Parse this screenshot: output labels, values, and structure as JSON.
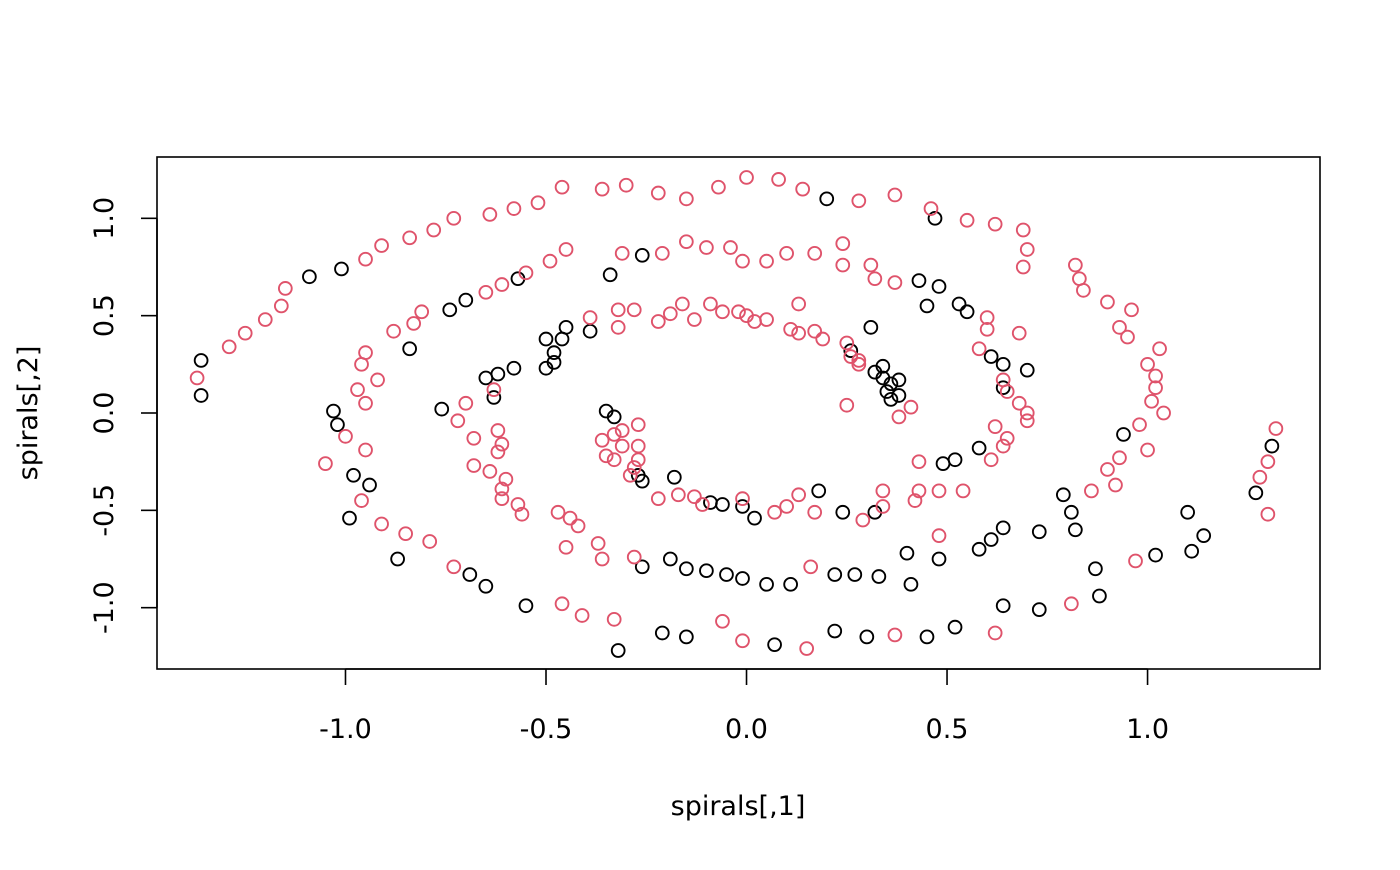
{
  "chart_data": {
    "type": "scatter",
    "title": "",
    "xlabel": "spirals[,1]",
    "ylabel": "spirals[,2]",
    "xlim": [
      -1.47,
      1.43
    ],
    "ylim": [
      -1.315,
      1.315
    ],
    "x_ticks": [
      -1.0,
      -0.5,
      0.0,
      0.5,
      1.0
    ],
    "x_tick_labels": [
      "-1.0",
      "-0.5",
      "0.0",
      "0.5",
      "1.0"
    ],
    "y_ticks": [
      -1.0,
      -0.5,
      0.0,
      0.5,
      1.0
    ],
    "y_tick_labels": [
      "-1.0",
      "-0.5",
      "0.0",
      "0.5",
      "1.0"
    ],
    "grid": false,
    "legend": "none",
    "series": [
      {
        "color": "#000000",
        "points": [
          [
            -1.36,
            0.27
          ],
          [
            -1.36,
            0.09
          ],
          [
            -1.09,
            0.7
          ],
          [
            -1.01,
            0.74
          ],
          [
            -1.03,
            0.01
          ],
          [
            -1.02,
            -0.06
          ],
          [
            -0.98,
            -0.32
          ],
          [
            -0.94,
            -0.37
          ],
          [
            -0.99,
            -0.54
          ],
          [
            -0.84,
            0.33
          ],
          [
            -0.76,
            0.02
          ],
          [
            -0.74,
            0.53
          ],
          [
            -0.7,
            0.58
          ],
          [
            -0.65,
            0.18
          ],
          [
            -0.62,
            0.2
          ],
          [
            -0.58,
            0.23
          ],
          [
            -0.63,
            0.08
          ],
          [
            -0.57,
            0.69
          ],
          [
            -0.5,
            0.38
          ],
          [
            -0.48,
            0.31
          ],
          [
            -0.48,
            0.26
          ],
          [
            -0.5,
            0.23
          ],
          [
            -0.45,
            0.44
          ],
          [
            -0.46,
            0.38
          ],
          [
            -0.39,
            0.42
          ],
          [
            -0.34,
            0.71
          ],
          [
            -0.26,
            0.81
          ],
          [
            -0.35,
            0.01
          ],
          [
            -0.33,
            -0.02
          ],
          [
            -0.27,
            -0.32
          ],
          [
            -0.26,
            -0.35
          ],
          [
            -0.18,
            -0.33
          ],
          [
            -0.09,
            -0.46
          ],
          [
            -0.06,
            -0.47
          ],
          [
            -0.01,
            -0.48
          ],
          [
            0.02,
            -0.54
          ],
          [
            0.18,
            -0.4
          ],
          [
            0.2,
            1.1
          ],
          [
            0.24,
            -0.51
          ],
          [
            0.26,
            0.32
          ],
          [
            0.31,
            0.44
          ],
          [
            0.32,
            0.21
          ],
          [
            0.34,
            0.24
          ],
          [
            0.34,
            0.18
          ],
          [
            0.35,
            0.11
          ],
          [
            0.36,
            0.15
          ],
          [
            0.36,
            0.07
          ],
          [
            0.38,
            0.09
          ],
          [
            0.38,
            0.17
          ],
          [
            0.32,
            -0.51
          ],
          [
            0.47,
            1.0
          ],
          [
            0.48,
            0.65
          ],
          [
            0.43,
            0.68
          ],
          [
            0.45,
            0.55
          ],
          [
            0.53,
            0.56
          ],
          [
            0.55,
            0.52
          ],
          [
            0.49,
            -0.26
          ],
          [
            0.52,
            -0.24
          ],
          [
            0.58,
            -0.18
          ],
          [
            0.61,
            0.29
          ],
          [
            0.64,
            0.25
          ],
          [
            0.64,
            0.13
          ],
          [
            0.7,
            0.22
          ],
          [
            0.4,
            -0.72
          ],
          [
            0.48,
            -0.75
          ],
          [
            0.58,
            -0.7
          ],
          [
            0.61,
            -0.65
          ],
          [
            0.64,
            -0.59
          ],
          [
            0.73,
            -0.61
          ],
          [
            0.79,
            -0.42
          ],
          [
            0.81,
            -0.51
          ],
          [
            0.82,
            -0.6
          ],
          [
            0.94,
            -0.11
          ],
          [
            -0.87,
            -0.75
          ],
          [
            -0.69,
            -0.83
          ],
          [
            -0.65,
            -0.89
          ],
          [
            -0.55,
            -0.99
          ],
          [
            -0.26,
            -0.79
          ],
          [
            -0.19,
            -0.75
          ],
          [
            -0.15,
            -0.8
          ],
          [
            -0.1,
            -0.81
          ],
          [
            -0.05,
            -0.83
          ],
          [
            -0.01,
            -0.85
          ],
          [
            0.05,
            -0.88
          ],
          [
            0.11,
            -0.88
          ],
          [
            0.22,
            -0.83
          ],
          [
            0.27,
            -0.83
          ],
          [
            0.33,
            -0.84
          ],
          [
            0.41,
            -0.88
          ],
          [
            -0.32,
            -1.22
          ],
          [
            -0.21,
            -1.13
          ],
          [
            -0.15,
            -1.15
          ],
          [
            0.07,
            -1.19
          ],
          [
            0.22,
            -1.12
          ],
          [
            0.3,
            -1.15
          ],
          [
            0.45,
            -1.15
          ],
          [
            0.52,
            -1.1
          ],
          [
            0.64,
            -0.99
          ],
          [
            0.73,
            -1.01
          ],
          [
            0.87,
            -0.8
          ],
          [
            0.88,
            -0.94
          ],
          [
            1.02,
            -0.73
          ],
          [
            1.1,
            -0.51
          ],
          [
            1.11,
            -0.71
          ],
          [
            1.14,
            -0.63
          ],
          [
            1.27,
            -0.41
          ],
          [
            1.31,
            -0.17
          ]
        ]
      },
      {
        "color": "#df536b",
        "points": [
          [
            -1.37,
            0.18
          ],
          [
            -1.29,
            0.34
          ],
          [
            -1.25,
            0.41
          ],
          [
            -1.2,
            0.48
          ],
          [
            -1.16,
            0.55
          ],
          [
            -1.15,
            0.64
          ],
          [
            -1.05,
            -0.26
          ],
          [
            -1.0,
            -0.12
          ],
          [
            -0.95,
            -0.19
          ],
          [
            -0.96,
            -0.45
          ],
          [
            -0.95,
            0.05
          ],
          [
            -0.97,
            0.12
          ],
          [
            -0.96,
            0.25
          ],
          [
            -0.95,
            0.31
          ],
          [
            -0.92,
            0.17
          ],
          [
            -0.95,
            0.79
          ],
          [
            -0.91,
            0.86
          ],
          [
            -0.91,
            -0.57
          ],
          [
            -0.88,
            0.42
          ],
          [
            -0.83,
            0.46
          ],
          [
            -0.81,
            0.52
          ],
          [
            -0.84,
            0.9
          ],
          [
            -0.78,
            0.94
          ],
          [
            -0.85,
            -0.62
          ],
          [
            -0.79,
            -0.66
          ],
          [
            -0.73,
            1.0
          ],
          [
            -0.73,
            -0.79
          ],
          [
            -0.72,
            -0.04
          ],
          [
            -0.7,
            0.05
          ],
          [
            -0.68,
            -0.13
          ],
          [
            -0.68,
            -0.27
          ],
          [
            -0.64,
            1.02
          ],
          [
            -0.65,
            0.62
          ],
          [
            -0.61,
            0.66
          ],
          [
            -0.64,
            -0.3
          ],
          [
            -0.62,
            -0.2
          ],
          [
            -0.62,
            -0.09
          ],
          [
            -0.61,
            -0.16
          ],
          [
            -0.6,
            -0.34
          ],
          [
            -0.61,
            -0.39
          ],
          [
            -0.61,
            -0.44
          ],
          [
            -0.63,
            0.12
          ],
          [
            -0.58,
            1.05
          ],
          [
            -0.55,
            0.72
          ],
          [
            -0.52,
            1.08
          ],
          [
            -0.49,
            0.78
          ],
          [
            -0.57,
            -0.47
          ],
          [
            -0.56,
            -0.52
          ],
          [
            -0.47,
            -0.51
          ],
          [
            -0.44,
            -0.54
          ],
          [
            -0.42,
            -0.58
          ],
          [
            -0.45,
            -0.69
          ],
          [
            -0.45,
            0.84
          ],
          [
            -0.46,
            1.16
          ],
          [
            -0.36,
            1.15
          ],
          [
            -0.39,
            0.49
          ],
          [
            -0.37,
            -0.67
          ],
          [
            -0.36,
            -0.75
          ],
          [
            -0.33,
            -1.06
          ],
          [
            -0.31,
            0.82
          ],
          [
            -0.32,
            0.44
          ],
          [
            -0.32,
            0.53
          ],
          [
            -0.3,
            1.17
          ],
          [
            -0.28,
            0.53
          ],
          [
            -0.28,
            -0.74
          ],
          [
            -0.46,
            -0.98
          ],
          [
            -0.41,
            -1.04
          ],
          [
            -0.36,
            -0.14
          ],
          [
            -0.35,
            -0.22
          ],
          [
            -0.33,
            -0.11
          ],
          [
            -0.31,
            -0.09
          ],
          [
            -0.33,
            -0.24
          ],
          [
            -0.31,
            -0.17
          ],
          [
            -0.29,
            -0.32
          ],
          [
            -0.28,
            -0.28
          ],
          [
            -0.27,
            -0.24
          ],
          [
            -0.27,
            -0.17
          ],
          [
            -0.27,
            -0.06
          ],
          [
            -0.22,
            1.13
          ],
          [
            -0.21,
            0.82
          ],
          [
            -0.22,
            0.47
          ],
          [
            -0.19,
            0.51
          ],
          [
            -0.17,
            -0.42
          ],
          [
            -0.15,
            0.88
          ],
          [
            -0.15,
            1.1
          ],
          [
            -0.16,
            0.56
          ],
          [
            -0.22,
            -0.44
          ],
          [
            -0.13,
            0.48
          ],
          [
            -0.13,
            -0.43
          ],
          [
            -0.11,
            -0.47
          ],
          [
            -0.1,
            0.85
          ],
          [
            -0.09,
            0.56
          ],
          [
            -0.07,
            1.16
          ],
          [
            -0.04,
            0.85
          ],
          [
            -0.06,
            0.52
          ],
          [
            -0.02,
            0.52
          ],
          [
            -0.01,
            -0.44
          ],
          [
            0.0,
            0.5
          ],
          [
            -0.01,
            0.78
          ],
          [
            0.02,
            0.47
          ],
          [
            0.05,
            0.48
          ],
          [
            0.05,
            0.78
          ],
          [
            0.0,
            1.21
          ],
          [
            0.07,
            -0.51
          ],
          [
            0.1,
            -0.48
          ],
          [
            0.13,
            -0.42
          ],
          [
            0.1,
            0.82
          ],
          [
            0.11,
            0.43
          ],
          [
            0.13,
            0.41
          ],
          [
            0.13,
            0.56
          ],
          [
            0.08,
            1.2
          ],
          [
            0.14,
            1.15
          ],
          [
            0.17,
            0.82
          ],
          [
            0.17,
            0.42
          ],
          [
            0.19,
            0.38
          ],
          [
            0.17,
            -0.51
          ],
          [
            0.16,
            -0.79
          ],
          [
            0.24,
            0.87
          ],
          [
            0.24,
            0.76
          ],
          [
            0.25,
            0.36
          ],
          [
            0.25,
            0.04
          ],
          [
            0.26,
            0.29
          ],
          [
            0.28,
            0.25
          ],
          [
            0.28,
            0.27
          ],
          [
            0.28,
            1.09
          ],
          [
            0.29,
            -0.55
          ],
          [
            0.31,
            0.76
          ],
          [
            0.32,
            0.69
          ],
          [
            0.34,
            -0.4
          ],
          [
            0.34,
            -0.48
          ],
          [
            0.37,
            0.67
          ],
          [
            0.37,
            1.12
          ],
          [
            0.38,
            -0.02
          ],
          [
            0.41,
            0.03
          ],
          [
            0.42,
            -0.45
          ],
          [
            0.43,
            -0.4
          ],
          [
            0.43,
            -0.25
          ],
          [
            0.46,
            1.05
          ],
          [
            0.48,
            -0.4
          ],
          [
            0.48,
            -0.63
          ],
          [
            0.54,
            -0.4
          ],
          [
            0.55,
            0.99
          ],
          [
            0.6,
            0.49
          ],
          [
            0.6,
            0.43
          ],
          [
            0.58,
            0.33
          ],
          [
            0.61,
            -0.24
          ],
          [
            0.62,
            -0.07
          ],
          [
            0.64,
            0.17
          ],
          [
            0.65,
            0.11
          ],
          [
            0.65,
            -0.13
          ],
          [
            0.64,
            -0.17
          ],
          [
            0.62,
            0.97
          ],
          [
            0.68,
            0.41
          ],
          [
            0.68,
            0.05
          ],
          [
            0.7,
            0.0
          ],
          [
            0.7,
            -0.04
          ],
          [
            0.69,
            0.75
          ],
          [
            0.69,
            0.94
          ],
          [
            0.7,
            0.84
          ],
          [
            0.81,
            -0.98
          ],
          [
            0.82,
            0.76
          ],
          [
            0.83,
            0.69
          ],
          [
            0.84,
            0.63
          ],
          [
            0.86,
            -0.4
          ],
          [
            0.9,
            0.57
          ],
          [
            0.93,
            0.44
          ],
          [
            0.95,
            0.39
          ],
          [
            0.96,
            0.53
          ],
          [
            0.9,
            -0.29
          ],
          [
            0.93,
            -0.23
          ],
          [
            0.92,
            -0.37
          ],
          [
            0.98,
            -0.06
          ],
          [
            1.0,
            -0.19
          ],
          [
            0.97,
            -0.76
          ],
          [
            1.0,
            0.25
          ],
          [
            1.01,
            0.06
          ],
          [
            1.02,
            0.13
          ],
          [
            1.02,
            0.19
          ],
          [
            1.03,
            0.33
          ],
          [
            1.04,
            0.0
          ],
          [
            0.62,
            -1.13
          ],
          [
            0.37,
            -1.14
          ],
          [
            0.15,
            -1.21
          ],
          [
            -0.01,
            -1.17
          ],
          [
            -0.06,
            -1.07
          ],
          [
            1.28,
            -0.33
          ],
          [
            1.3,
            -0.25
          ],
          [
            1.3,
            -0.52
          ],
          [
            1.32,
            -0.08
          ]
        ]
      }
    ]
  }
}
